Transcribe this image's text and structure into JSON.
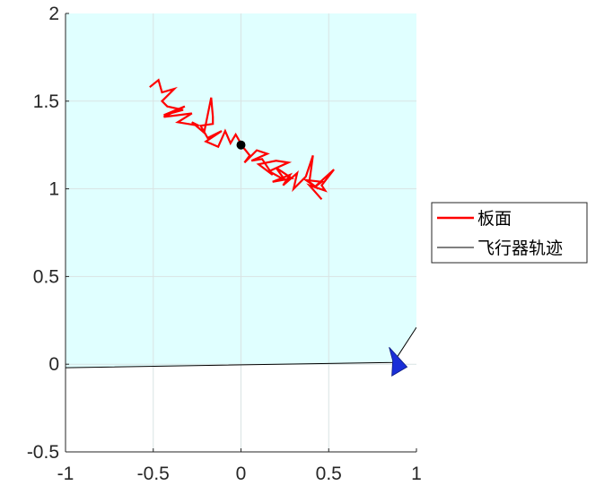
{
  "chart_data": {
    "type": "line",
    "title": "",
    "xlabel": "",
    "ylabel": "",
    "xlim": [
      -1,
      1
    ],
    "ylim": [
      -0.5,
      2
    ],
    "xticks": [
      -1,
      -0.5,
      0,
      0.5,
      1
    ],
    "yticks": [
      -0.5,
      0,
      0.5,
      1,
      1.5,
      2
    ],
    "xtick_labels": [
      "-1",
      "-0.5",
      "0",
      "0.5",
      "1"
    ],
    "ytick_labels": [
      "-0.5",
      "0",
      "0.5",
      "1",
      "1.5",
      "2"
    ],
    "grid": true,
    "legend_position": "outside-right",
    "colors": {
      "region": "#e0ffff",
      "plate": "#ff0000",
      "trajectory": "#000000",
      "aircraft": "#1a2fd8",
      "center_marker": "#000000",
      "grid": "#d9e3e3",
      "axis": "#262626"
    },
    "shaded_region": {
      "polygon": [
        [
          -1,
          2
        ],
        [
          1,
          2
        ],
        [
          1,
          0.21
        ],
        [
          0.87,
          0.01
        ],
        [
          -1,
          -0.02
        ]
      ]
    },
    "series": [
      {
        "name": "板面",
        "color": "#ff0000",
        "points": [
          [
            -0.52,
            1.58
          ],
          [
            -0.47,
            1.62
          ],
          [
            -0.45,
            1.55
          ],
          [
            -0.38,
            1.57
          ],
          [
            -0.45,
            1.5
          ],
          [
            -0.42,
            1.47
          ],
          [
            -0.33,
            1.45
          ],
          [
            -0.44,
            1.42
          ],
          [
            -0.32,
            1.47
          ],
          [
            -0.44,
            1.41
          ],
          [
            -0.28,
            1.43
          ],
          [
            -0.36,
            1.38
          ],
          [
            -0.24,
            1.36
          ],
          [
            -0.28,
            1.38
          ],
          [
            -0.21,
            1.32
          ],
          [
            -0.17,
            1.52
          ],
          [
            -0.16,
            1.41
          ],
          [
            -0.16,
            1.37
          ],
          [
            -0.23,
            1.36
          ],
          [
            -0.19,
            1.29
          ],
          [
            -0.11,
            1.33
          ],
          [
            -0.2,
            1.27
          ],
          [
            -0.13,
            1.24
          ],
          [
            -0.09,
            1.33
          ],
          [
            -0.06,
            1.26
          ],
          [
            -0.03,
            1.31
          ],
          [
            0.01,
            1.24
          ],
          [
            0.05,
            1.19
          ],
          [
            0.02,
            1.15
          ],
          [
            0.09,
            1.22
          ],
          [
            0.15,
            1.2
          ],
          [
            0.06,
            1.16
          ],
          [
            0.12,
            1.17
          ],
          [
            0.18,
            1.08
          ],
          [
            0.1,
            1.14
          ],
          [
            0.2,
            1.16
          ],
          [
            0.27,
            1.15
          ],
          [
            0.16,
            1.1
          ],
          [
            0.25,
            1.05
          ],
          [
            0.2,
            1.12
          ],
          [
            0.29,
            1.06
          ],
          [
            0.18,
            1.04
          ],
          [
            0.28,
            1.08
          ],
          [
            0.24,
            1.02
          ],
          [
            0.32,
            1.09
          ],
          [
            0.3,
            1.0
          ],
          [
            0.37,
            1.07
          ],
          [
            0.41,
            1.19
          ],
          [
            0.39,
            1.04
          ],
          [
            0.44,
            1.0
          ],
          [
            0.37,
            1.05
          ],
          [
            0.46,
            1.04
          ],
          [
            0.42,
            1.01
          ],
          [
            0.53,
            1.11
          ],
          [
            0.46,
            1.02
          ],
          [
            0.48,
            0.99
          ],
          [
            0.39,
            1.02
          ],
          [
            0.46,
            0.94
          ]
        ]
      },
      {
        "name": "飞行器轨迹",
        "color": "#000000",
        "points": [
          [
            -1,
            -0.02
          ],
          [
            0.87,
            0.01
          ],
          [
            1,
            0.21
          ]
        ]
      }
    ],
    "markers": [
      {
        "type": "center-dot",
        "x": 0.0,
        "y": 1.25,
        "color": "#000000"
      },
      {
        "type": "aircraft-arrow",
        "x": 0.87,
        "y": 0.01,
        "color": "#1a2fd8"
      }
    ]
  }
}
